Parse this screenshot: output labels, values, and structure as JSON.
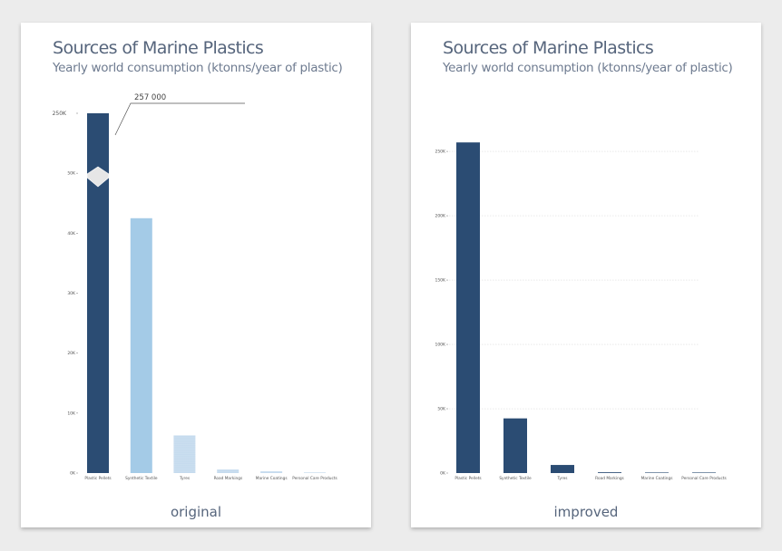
{
  "panels": [
    {
      "title": "Sources of Marine Plastics",
      "subtitle": "Yearly world consumption (ktonns/year of plastic)",
      "caption": "original"
    },
    {
      "title": "Sources of Marine Plastics",
      "subtitle": "Yearly world consumption (ktonns/year of plastic)",
      "caption": "improved"
    }
  ],
  "colors": {
    "dark": "#2b4c73",
    "light": "#a4cbe7",
    "grid": "#dddddd"
  },
  "chart_data": [
    {
      "type": "bar",
      "title": "Sources of Marine Plastics",
      "subtitle": "Yearly world consumption (ktonns/year of plastic)",
      "categories": [
        "Plastic Pellets",
        "Synthetic Textile",
        "Tyres",
        "Road Markings",
        "Marine Coatings",
        "Personal Care Products"
      ],
      "values": [
        257000,
        42500,
        6300,
        600,
        300,
        50
      ],
      "axis_break": true,
      "ylim": [
        0,
        60000
      ],
      "yticks": [
        0,
        10000,
        20000,
        30000,
        40000,
        50000
      ],
      "ytick_labels": [
        "0K",
        "10K",
        "20K",
        "30K",
        "40K",
        "50K"
      ],
      "top_label": "250K",
      "annotation": "257 000",
      "grid": false
    },
    {
      "type": "bar",
      "title": "Sources of Marine Plastics",
      "subtitle": "Yearly world consumption (ktonns/year of plastic)",
      "categories": [
        "Plastic Pellets",
        "Synthetic Textile",
        "Tyres",
        "Road Markings",
        "Marine Coatings",
        "Personal Care Products"
      ],
      "values": [
        257000,
        42500,
        6300,
        600,
        300,
        50
      ],
      "ylim": [
        0,
        255000
      ],
      "yticks": [
        0,
        50000,
        100000,
        150000,
        200000,
        250000
      ],
      "ytick_labels": [
        "0K",
        "50K",
        "100K",
        "150K",
        "200K",
        "250K"
      ],
      "grid": true
    }
  ]
}
